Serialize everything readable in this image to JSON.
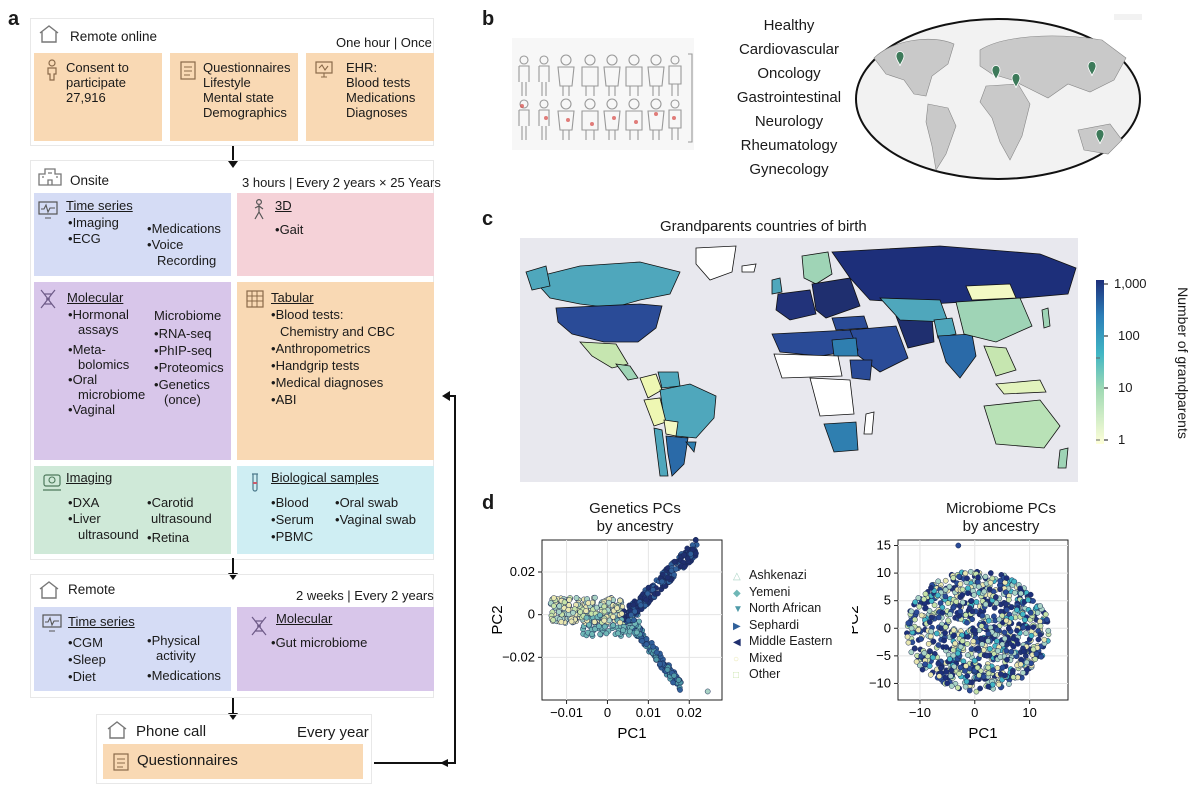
{
  "panels": {
    "a": "a",
    "b": "b",
    "c": "c",
    "d": "d"
  },
  "remote_online": {
    "title": "Remote online",
    "frequency": "One hour | Once",
    "consent": {
      "line1": "Consent to",
      "line2": "participate",
      "count": "27,916"
    },
    "questionnaires": {
      "title": "Questionnaires",
      "items": [
        "Lifestyle",
        "Mental state",
        "Demographics"
      ]
    },
    "ehr": {
      "title": "EHR:",
      "items": [
        "Blood tests",
        "Medications",
        "Diagnoses"
      ]
    }
  },
  "onsite": {
    "title": "Onsite",
    "frequency": "3 hours | Every 2 years × 25 Years",
    "time_series": {
      "title": "Time series",
      "col1": [
        "Imaging",
        "ECG"
      ],
      "col2": [
        "Medications",
        "Voice",
        "Recording"
      ]
    },
    "three_d": {
      "title": "3D",
      "items": [
        "Gait"
      ]
    },
    "molecular": {
      "title": "Molecular",
      "col1": [
        "Hormonal",
        "assays",
        "Meta-",
        "bolomics",
        "Oral",
        "microbiome",
        "Vaginal"
      ],
      "col2_title": "Microbiome",
      "col2": [
        "RNA-seq",
        "PhIP-seq",
        "Proteomics",
        "Genetics",
        "(once)"
      ]
    },
    "tabular": {
      "title": "Tabular",
      "items": [
        "Blood tests:",
        "Chemistry and CBC",
        "Anthropometrics",
        "Handgrip tests",
        "Medical diagnoses",
        "ABI"
      ]
    },
    "imaging": {
      "title": "Imaging",
      "col1": [
        "DXA",
        "Liver",
        "ultrasound"
      ],
      "col2": [
        "Carotid",
        "ultrasound",
        "Retina"
      ]
    },
    "bio": {
      "title": "Biological samples",
      "col1": [
        "Blood",
        "Serum",
        "PBMC"
      ],
      "col2": [
        "Oral swab",
        "Vaginal swab"
      ]
    }
  },
  "remote": {
    "title": "Remote",
    "frequency": "2 weeks | Every 2 years",
    "time_series": {
      "title": "Time series",
      "col1": [
        "CGM",
        "Sleep",
        "Diet"
      ],
      "col2": [
        "Physical",
        "activity",
        "Medications"
      ]
    },
    "molecular": {
      "title": "Molecular",
      "items": [
        "Gut microbiome"
      ]
    }
  },
  "phone": {
    "title": "Phone call",
    "frequency": "Every year",
    "box": "Questionnaires"
  },
  "panel_b": {
    "diseases": [
      "Healthy",
      "Cardiovascular",
      "Oncology",
      "Gastrointestinal",
      "Neurology",
      "Rheumatology",
      "Gynecology"
    ]
  },
  "panel_c": {
    "title": "Grandparents countries of birth",
    "colorbar_label": "Number of grandparents",
    "ticks": [
      "1,000",
      "100",
      "10",
      "1"
    ],
    "colors": {
      "low": "#f7fcb9",
      "mid": "#41b6c4",
      "high": "#1d2f7a"
    }
  },
  "chart_data": [
    {
      "type": "scatter",
      "title": "Genetics PCs by ancestry",
      "title_line1": "Genetics PCs",
      "title_line2": "by ancestry",
      "xlabel": "PC1",
      "ylabel": "PC2",
      "xlim": [
        -0.016,
        0.028
      ],
      "ylim": [
        -0.04,
        0.035
      ],
      "xticks": [
        -0.01,
        0,
        0.01,
        0.02
      ],
      "xtick_labels": [
        "−0.01",
        "0",
        "0.01",
        "0.02"
      ],
      "yticks": [
        -0.02,
        0,
        0.02
      ],
      "ytick_labels": [
        "−0.02",
        "0",
        "0.02"
      ],
      "legend": [
        {
          "name": "Ashkenazi",
          "marker": "△",
          "color": "#a9d3c5"
        },
        {
          "name": "Yemeni",
          "marker": "◆",
          "color": "#6fb7b6"
        },
        {
          "name": "North African",
          "marker": "▼",
          "color": "#4f9aa8"
        },
        {
          "name": "Sephardi",
          "marker": "▶",
          "color": "#30609a"
        },
        {
          "name": "Middle Eastern",
          "marker": "◀",
          "color": "#1f2f6f"
        },
        {
          "name": "Mixed",
          "marker": "○",
          "color": "#e9e7b0"
        },
        {
          "name": "Other",
          "marker": "□",
          "color": "#c7e3a8"
        }
      ]
    },
    {
      "type": "scatter",
      "title": "Microbiome PCs by ancestry",
      "title_line1": "Microbiome PCs",
      "title_line2": "by ancestry",
      "xlabel": "PC1",
      "ylabel": "PC2",
      "xlim": [
        -14,
        17
      ],
      "ylim": [
        -13,
        16
      ],
      "xticks": [
        -10,
        0,
        10
      ],
      "xtick_labels": [
        "−10",
        "0",
        "10"
      ],
      "yticks": [
        15,
        10,
        5,
        0,
        -5,
        -10
      ],
      "ytick_labels": [
        "15",
        "10",
        "5",
        "0",
        "−5",
        "−10"
      ]
    }
  ]
}
